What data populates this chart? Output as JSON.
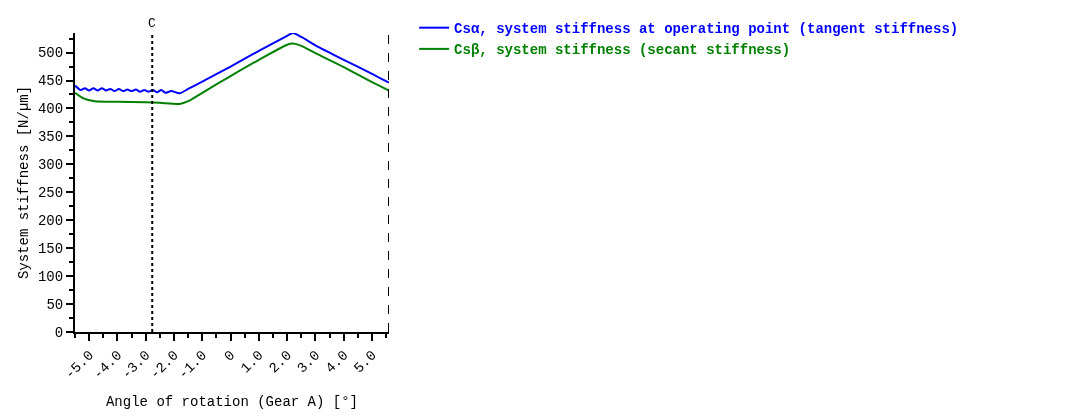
{
  "chart_data": {
    "type": "line",
    "xlabel": "Angle of rotation (Gear A) [°]",
    "ylabel": "System stiffness [N/µm]",
    "xlim": [
      -5.5,
      5.6
    ],
    "ylim": [
      0,
      535
    ],
    "xticks": [
      {
        "value": -5,
        "label": "-5.0"
      },
      {
        "value": -4,
        "label": "-4.0"
      },
      {
        "value": -3,
        "label": "-3.0"
      },
      {
        "value": -2,
        "label": "-2.0"
      },
      {
        "value": -1,
        "label": "-1.0"
      },
      0,
      {
        "value": 1,
        "label": "1.0"
      },
      {
        "value": 2,
        "label": "2.0"
      },
      {
        "value": 3,
        "label": "3.0"
      },
      {
        "value": 4,
        "label": "4.0"
      },
      {
        "value": 5,
        "label": "5.0"
      }
    ],
    "yticks": [
      0,
      50,
      100,
      150,
      200,
      250,
      300,
      350,
      400,
      450,
      500
    ],
    "legend": "right",
    "series": [
      {
        "name": "Csα, system stiffness at operating point (tangent stiffness)",
        "color": "#0000ff",
        "line_style": "solid",
        "x": [
          -5.5,
          -5.3,
          -5.15,
          -5.0,
          -4.85,
          -4.7,
          -4.55,
          -4.4,
          -4.25,
          -4.1,
          -3.95,
          -3.8,
          -3.65,
          -3.5,
          -3.35,
          -3.2,
          -3.05,
          -2.9,
          -2.75,
          -2.6,
          -2.45,
          -2.3,
          -2.1,
          -1.8,
          -1.5,
          -1.0,
          0.0,
          1.0,
          2.0,
          2.2,
          2.5,
          3.0,
          4.0,
          5.0,
          5.6
        ],
        "values": [
          441,
          433,
          436,
          432,
          436,
          432,
          436,
          432,
          435,
          431,
          435,
          431,
          434,
          431,
          434,
          430,
          433,
          430,
          433,
          429,
          433,
          428,
          431,
          427,
          435,
          448,
          475,
          503,
          530,
          535,
          528,
          513,
          487,
          462,
          446
        ]
      },
      {
        "name": "Csβ, system stiffness (secant stiffness)",
        "color": "#008000",
        "line_style": "solid",
        "x": [
          -5.5,
          -5.2,
          -4.8,
          -4.0,
          -3.0,
          -2.5,
          -1.8,
          -1.5,
          -1.0,
          0.0,
          1.0,
          2.0,
          2.2,
          2.5,
          3.0,
          4.0,
          5.0,
          5.6
        ],
        "values": [
          428,
          418,
          413,
          412,
          411,
          410,
          408,
          413,
          428,
          458,
          487,
          514,
          516,
          512,
          499,
          474,
          447,
          432
        ]
      }
    ],
    "ref_lines": [
      {
        "axis": "x",
        "value": -2.77,
        "label": "C",
        "color": "#000000",
        "line_style": "dotted"
      },
      {
        "axis": "x",
        "value": 5.6,
        "label": null,
        "color": "#000000",
        "line_style": "dashed"
      }
    ]
  }
}
